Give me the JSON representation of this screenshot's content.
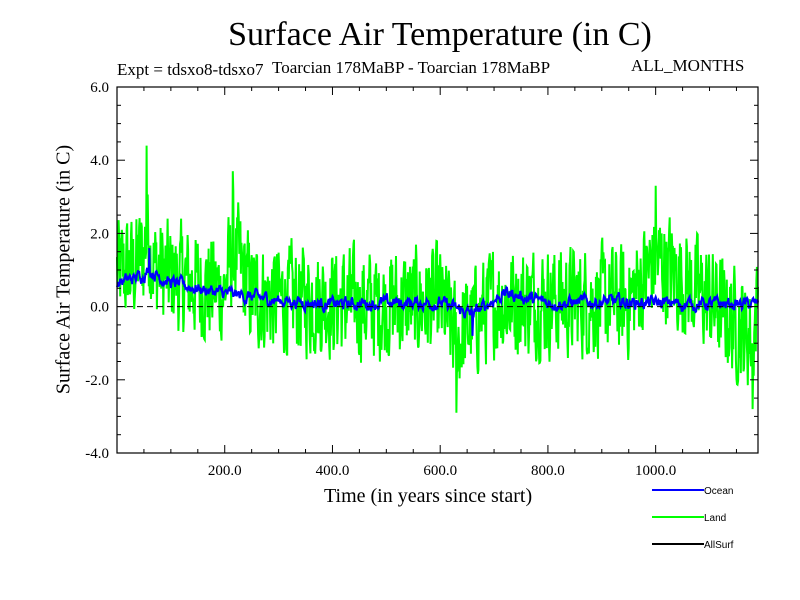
{
  "chart_data": {
    "type": "line",
    "title": "Surface Air Temperature (in C)",
    "subtitle_left": "Expt = tdsxo8-tdsxo7",
    "subtitle_center": "Toarcian 178MaBP - Toarcian 178MaBP",
    "subtitle_right": "ALL_MONTHS",
    "xlabel": "Time (in years since start)",
    "ylabel": "Surface Air Temperature (in C)",
    "xlim": [
      0,
      1190
    ],
    "ylim": [
      -4.0,
      6.0
    ],
    "xticks": [
      200,
      400,
      600,
      800,
      1000
    ],
    "xtick_labels": [
      "200.0",
      "400.0",
      "600.0",
      "800.0",
      "1000.0"
    ],
    "yticks": [
      -4.0,
      -2.0,
      0.0,
      2.0,
      4.0,
      6.0
    ],
    "ytick_labels": [
      "-4.0",
      "-2.0",
      "0.0",
      "2.0",
      "4.0",
      "6.0"
    ],
    "reference_line": {
      "y": 0.0,
      "style": "dashed"
    },
    "legend_position": "bottom-right",
    "series": [
      {
        "name": "Land",
        "color": "#00ff00",
        "mean_early": 1.0,
        "mean_late": 0.2,
        "spread": 1.5,
        "max": 4.45,
        "min": -2.95,
        "anchors": [
          [
            0,
            0.8
          ],
          [
            30,
            1.2
          ],
          [
            50,
            2.5
          ],
          [
            55,
            4.4
          ],
          [
            70,
            1.5
          ],
          [
            100,
            0.9
          ],
          [
            150,
            0.6
          ],
          [
            200,
            0.3
          ],
          [
            215,
            3.7
          ],
          [
            250,
            0.4
          ],
          [
            300,
            0.2
          ],
          [
            400,
            0.1
          ],
          [
            460,
            -0.3
          ],
          [
            540,
            -0.1
          ],
          [
            600,
            0.0
          ],
          [
            630,
            -2.9
          ],
          [
            700,
            0.1
          ],
          [
            800,
            0.1
          ],
          [
            950,
            0.0
          ],
          [
            1000,
            3.3
          ],
          [
            1100,
            0.1
          ],
          [
            1180,
            -2.8
          ],
          [
            1190,
            0.3
          ]
        ]
      },
      {
        "name": "Ocean",
        "color": "#0000ff",
        "mean_early": 0.8,
        "mean_late": 0.1,
        "spread": 0.35,
        "max": 1.7,
        "min": -1.0,
        "anchors": [
          [
            0,
            0.4
          ],
          [
            30,
            0.8
          ],
          [
            60,
            1.6
          ],
          [
            100,
            0.8
          ],
          [
            150,
            0.6
          ],
          [
            200,
            0.4
          ],
          [
            300,
            0.3
          ],
          [
            400,
            0.0
          ],
          [
            500,
            0.1
          ],
          [
            600,
            0.1
          ],
          [
            660,
            -0.8
          ],
          [
            720,
            0.9
          ],
          [
            800,
            0.1
          ],
          [
            900,
            0.2
          ],
          [
            1000,
            0.1
          ],
          [
            1100,
            0.0
          ],
          [
            1190,
            0.0
          ]
        ]
      },
      {
        "name": "AllSurf",
        "color": "#000000",
        "values": []
      }
    ]
  }
}
